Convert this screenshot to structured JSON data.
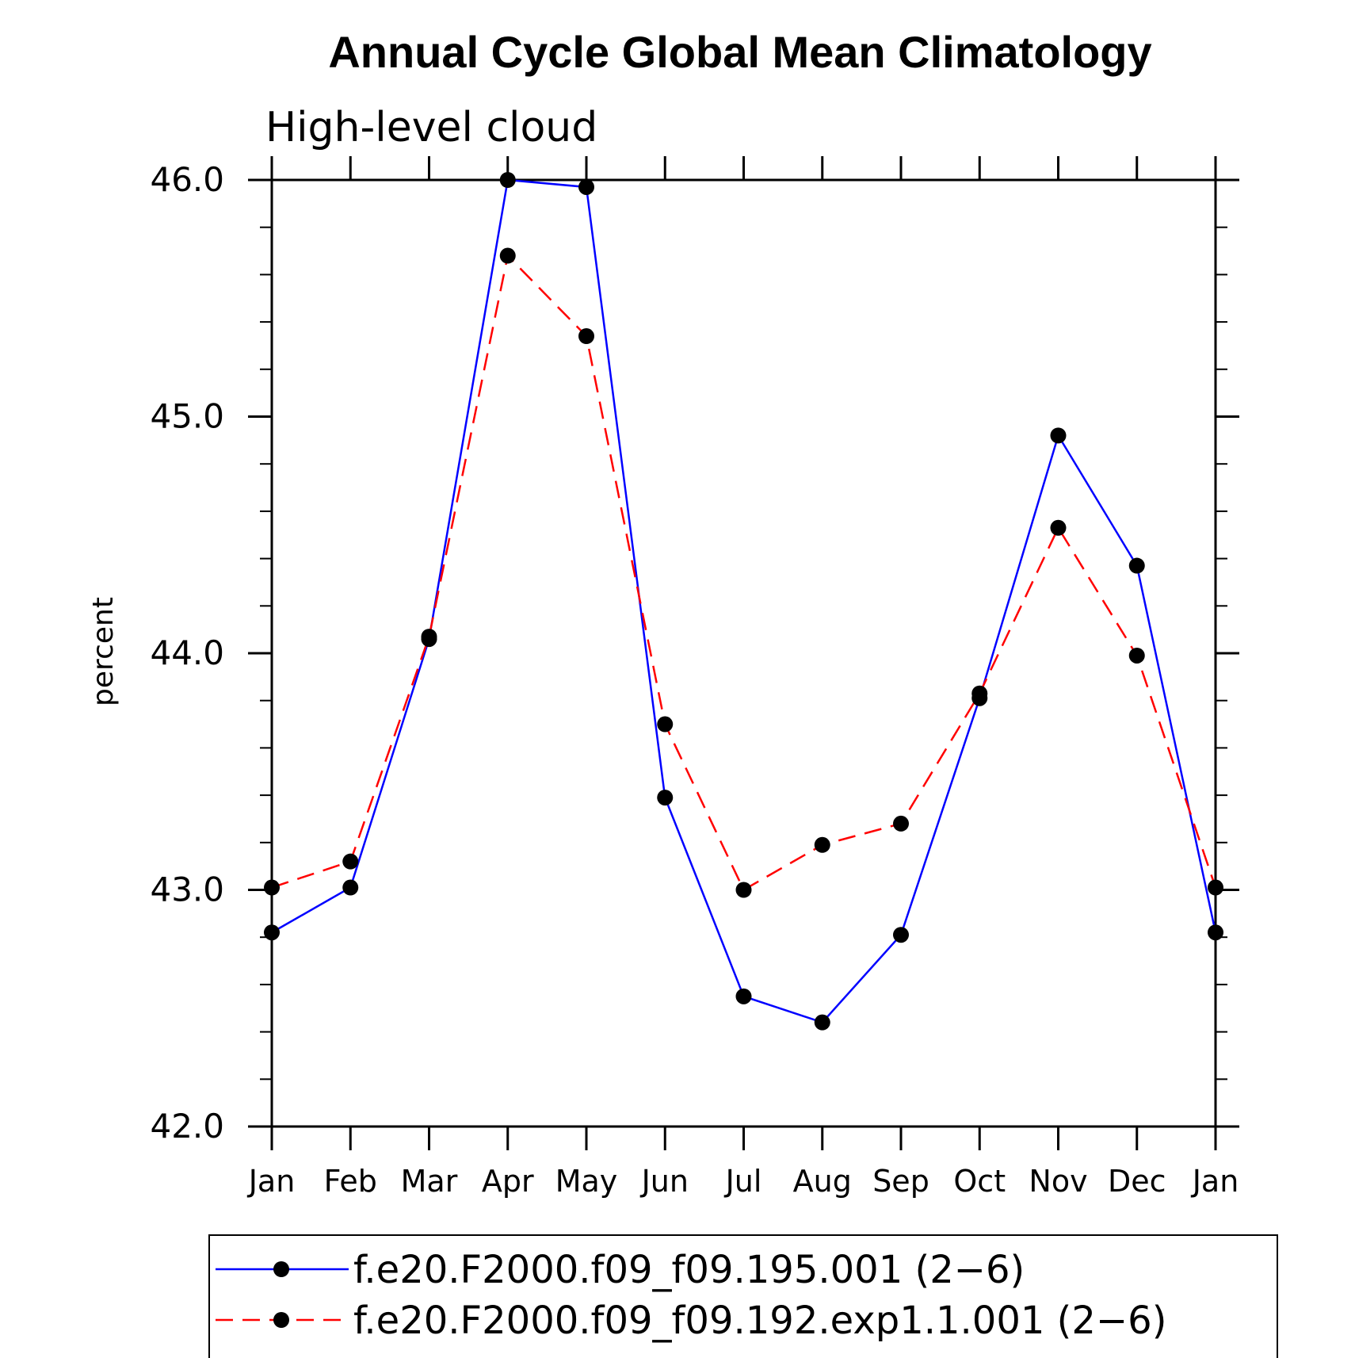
{
  "chart_data": {
    "type": "line",
    "title": "Annual Cycle Global Mean Climatology",
    "subtitle": "High-level cloud",
    "xlabel": "",
    "ylabel": "percent",
    "ylim": [
      42.0,
      46.0
    ],
    "y_major_ticks": [
      "42.0",
      "43.0",
      "44.0",
      "45.0",
      "46.0"
    ],
    "y_major_values": [
      42.0,
      43.0,
      44.0,
      45.0,
      46.0
    ],
    "y_minor_step": 0.2,
    "categories": [
      "Jan",
      "Feb",
      "Mar",
      "Apr",
      "May",
      "Jun",
      "Jul",
      "Aug",
      "Sep",
      "Oct",
      "Nov",
      "Dec",
      "Jan"
    ],
    "series": [
      {
        "name": "f.e20.F2000.f09_f09.195.001 (2−6)",
        "color": "#0000ff",
        "dash": "solid",
        "values": [
          42.82,
          43.01,
          44.06,
          46.0,
          45.97,
          43.39,
          42.55,
          42.44,
          42.81,
          43.81,
          44.92,
          44.37,
          42.82
        ]
      },
      {
        "name": "f.e20.F2000.f09_f09.192.exp1.1.001 (2−6)",
        "color": "#ff0000",
        "dash": "dashed",
        "values": [
          43.01,
          43.12,
          44.07,
          45.68,
          45.34,
          43.7,
          43.0,
          43.19,
          43.28,
          43.83,
          44.53,
          43.99,
          43.01
        ]
      }
    ],
    "legend_position": "bottom"
  }
}
